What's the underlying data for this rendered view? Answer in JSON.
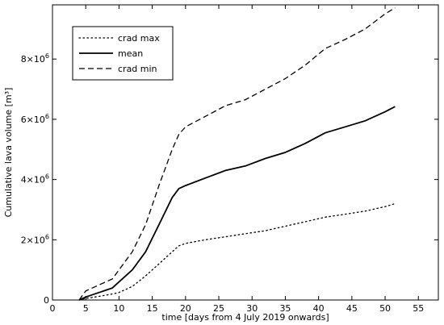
{
  "chart_data": {
    "type": "line",
    "title": "",
    "xlabel": "time [days from 4 July 2019 onwards]",
    "ylabel": "Cumulative lava volume [m³]",
    "xlim": [
      0,
      58
    ],
    "ylim": [
      0,
      9800000
    ],
    "grid": false,
    "legend_position": "top-left",
    "x_ticks": [
      0,
      5,
      10,
      15,
      20,
      25,
      30,
      35,
      40,
      45,
      50,
      55
    ],
    "y_ticks": [
      {
        "value": 0,
        "mantissa": "0",
        "exponent": ""
      },
      {
        "value": 2000000,
        "mantissa": "2×10",
        "exponent": "6"
      },
      {
        "value": 4000000,
        "mantissa": "4×10",
        "exponent": "6"
      },
      {
        "value": 6000000,
        "mantissa": "6×10",
        "exponent": "6"
      },
      {
        "value": 8000000,
        "mantissa": "8×10",
        "exponent": "6"
      }
    ],
    "series": [
      {
        "name": "crad max",
        "style": "dotted",
        "color": "#000000",
        "x": [
          4,
          5,
          7,
          9,
          10,
          12,
          14,
          16,
          18,
          19,
          20,
          23,
          26,
          29,
          32,
          35,
          38,
          41,
          44,
          47,
          50,
          51.5
        ],
        "y": [
          0,
          50000,
          120000,
          200000,
          250000,
          450000,
          800000,
          1200000,
          1600000,
          1800000,
          1880000,
          2000000,
          2100000,
          2200000,
          2300000,
          2450000,
          2600000,
          2750000,
          2850000,
          2950000,
          3100000,
          3200000
        ]
      },
      {
        "name": "mean",
        "style": "solid",
        "color": "#000000",
        "x": [
          4,
          5,
          7,
          9,
          10,
          12,
          14,
          16,
          18,
          19,
          20,
          23,
          26,
          29,
          32,
          35,
          38,
          41,
          44,
          47,
          50,
          51.5
        ],
        "y": [
          0,
          100000,
          250000,
          400000,
          600000,
          1000000,
          1600000,
          2500000,
          3400000,
          3700000,
          3800000,
          4050000,
          4300000,
          4450000,
          4700000,
          4900000,
          5200000,
          5550000,
          5750000,
          5950000,
          6250000,
          6420000
        ]
      },
      {
        "name": "crad min",
        "style": "dashed",
        "color": "#000000",
        "x": [
          4,
          5,
          7,
          9,
          10,
          12,
          14,
          16,
          18,
          19,
          20,
          23,
          26,
          29,
          32,
          35,
          38,
          41,
          44,
          47,
          50,
          51.5
        ],
        "y": [
          0,
          300000,
          500000,
          700000,
          1000000,
          1600000,
          2500000,
          3800000,
          5000000,
          5500000,
          5750000,
          6100000,
          6450000,
          6650000,
          7000000,
          7350000,
          7800000,
          8350000,
          8650000,
          9000000,
          9500000,
          9700000
        ]
      }
    ]
  }
}
